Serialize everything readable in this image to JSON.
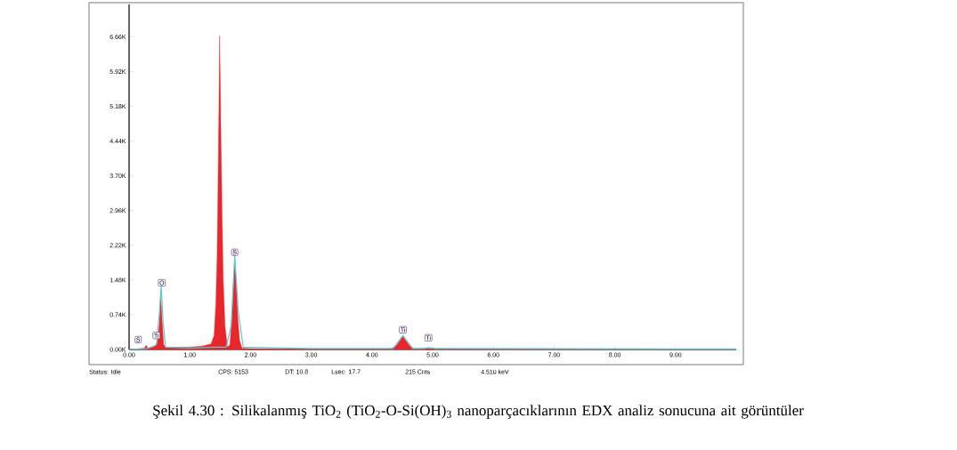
{
  "chart_data": {
    "type": "area",
    "title": "Şekil 4.30 : Silikalanmış TiO$_{2}$ (TiO$_{2}$-O-Si(OH)$_{3}$ nanoparçacıklarının EDX analiz sonucuna ait görüntüler",
    "xlim": [
      0,
      10
    ],
    "ylim": [
      0,
      7.35
    ],
    "xticks": [
      {
        "value": 0,
        "label": "0.00"
      },
      {
        "value": 1,
        "label": "1.00"
      },
      {
        "value": 2,
        "label": "2.00"
      },
      {
        "value": 3,
        "label": "3.00"
      },
      {
        "value": 4,
        "label": "4.00"
      },
      {
        "value": 5,
        "label": "5.00"
      },
      {
        "value": 6,
        "label": "6.00"
      },
      {
        "value": 7,
        "label": "7.00"
      },
      {
        "value": 8,
        "label": "8.00"
      },
      {
        "value": 9,
        "label": "9.00"
      }
    ],
    "yticks": [
      {
        "value": 0,
        "label": "0.00K"
      },
      {
        "value": 0.74,
        "label": "0.74K"
      },
      {
        "value": 1.48,
        "label": "1.48K"
      },
      {
        "value": 2.22,
        "label": "2.22K"
      },
      {
        "value": 2.96,
        "label": "2.96K"
      },
      {
        "value": 3.7,
        "label": "3.70K"
      },
      {
        "value": 4.44,
        "label": "4.44K"
      },
      {
        "value": 5.18,
        "label": "5.18K"
      },
      {
        "value": 5.92,
        "label": "5.92K"
      },
      {
        "value": 6.66,
        "label": "6.66K"
      }
    ],
    "series": [
      {
        "color": "#e8262b",
        "x": [
          0,
          0.1,
          0.2,
          0.25,
          0.28,
          0.31,
          0.4,
          0.45,
          0.48,
          0.5,
          0.52,
          0.54,
          0.57,
          0.6,
          0.8,
          1.0,
          1.2,
          1.35,
          1.4,
          1.43,
          1.45,
          1.47,
          1.48,
          1.49,
          1.5,
          1.51,
          1.53,
          1.55,
          1.58,
          1.62,
          1.66,
          1.69,
          1.72,
          1.74,
          1.76,
          1.79,
          1.82,
          1.86,
          2.0,
          3.0,
          4.3,
          4.4,
          4.51,
          4.62,
          4.7,
          4.93,
          5.0,
          6.0,
          8.0,
          10.0
        ],
        "values": [
          0,
          0.01,
          0.02,
          0.03,
          0.09,
          0.03,
          0.05,
          0.1,
          0.25,
          0.6,
          1.2,
          0.7,
          0.1,
          0.05,
          0.05,
          0.05,
          0.07,
          0.12,
          0.3,
          1.0,
          2.0,
          4.0,
          5.2,
          6.68,
          5.9,
          4.8,
          3.0,
          1.5,
          0.5,
          0.05,
          0.1,
          0.6,
          1.4,
          1.9,
          1.5,
          0.7,
          0.2,
          0.03,
          0.02,
          0.01,
          0.01,
          0.08,
          0.28,
          0.08,
          0.01,
          0.03,
          0.01,
          0.01,
          0.01,
          0.01
        ]
      },
      {
        "type": "line",
        "color": "#5bc8d6",
        "x": [
          0,
          0.3,
          0.45,
          0.5,
          0.53,
          0.56,
          0.6,
          1.0,
          1.4,
          1.6,
          1.68,
          1.74,
          1.8,
          1.88,
          3.0,
          4.35,
          4.51,
          4.67,
          4.85,
          4.93,
          5.05,
          10.0
        ],
        "values": [
          0,
          0.02,
          0.1,
          0.8,
          1.35,
          0.6,
          0.05,
          0.03,
          0.05,
          0.05,
          0.5,
          2.0,
          0.8,
          0.05,
          0.02,
          0.02,
          0.3,
          0.02,
          0.02,
          0.04,
          0.02,
          0.01
        ]
      }
    ],
    "annotations": [
      {
        "text": "S",
        "x": 0.15,
        "y": 0.21
      },
      {
        "text": "Ti",
        "x": 0.45,
        "y": 0.3
      },
      {
        "text": "O",
        "x": 0.54,
        "y": 1.42
      },
      {
        "text": "S",
        "x": 1.74,
        "y": 2.07
      },
      {
        "text": "Ti",
        "x": 4.51,
        "y": 0.42
      },
      {
        "text": "Ti",
        "x": 4.93,
        "y": 0.25
      },
      "Status: Idle",
      "CPS: 5153",
      "DT: 10.8",
      "Lsec: 17.7",
      "215 Cnts",
      "4.510 keV"
    ]
  }
}
